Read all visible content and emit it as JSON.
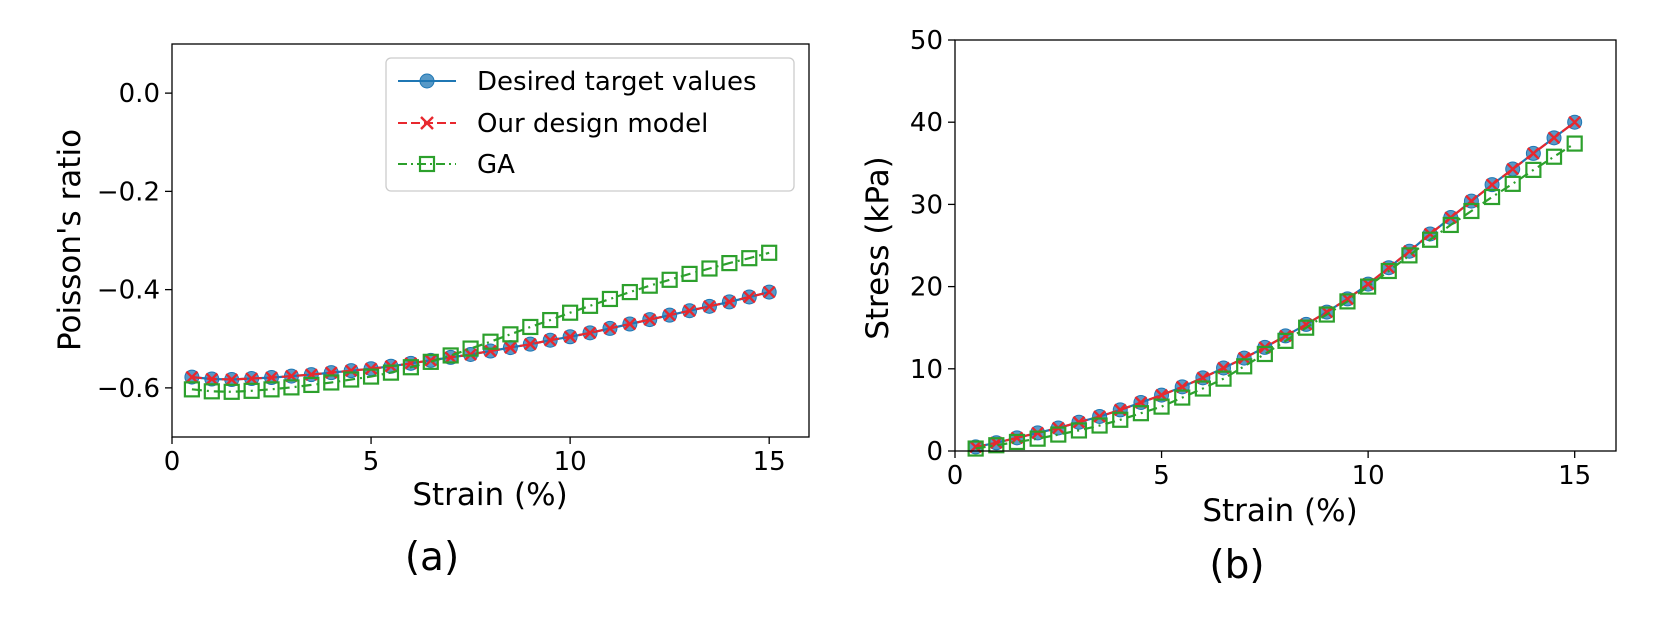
{
  "chart_data": [
    {
      "type": "line",
      "caption": "(a)",
      "xlabel": "Strain (%)",
      "ylabel": "Poisson's ratio",
      "xlim": [
        0,
        16
      ],
      "ylim": [
        -0.7,
        0.1
      ],
      "xticks": [
        0,
        5,
        10,
        15
      ],
      "xtick_labels": [
        "0",
        "5",
        "10",
        "15"
      ],
      "yticks": [
        0.0,
        -0.2,
        -0.4,
        -0.6
      ],
      "ytick_labels": [
        "0.0",
        "−0.2",
        "−0.4",
        "−0.6"
      ],
      "legend_position": "top-right",
      "x": [
        0.5,
        1,
        1.5,
        2,
        2.5,
        3,
        3.5,
        4,
        4.5,
        5,
        5.5,
        6,
        6.5,
        7,
        7.5,
        8,
        8.5,
        9,
        9.5,
        10,
        10.5,
        11,
        11.5,
        12,
        12.5,
        13,
        13.5,
        14,
        14.5,
        15
      ],
      "series": [
        {
          "name": "Desired target values",
          "color": "#1f77b4",
          "marker": "circle",
          "linestyle": "solid",
          "values": [
            -0.578,
            -0.582,
            -0.583,
            -0.581,
            -0.579,
            -0.576,
            -0.573,
            -0.569,
            -0.565,
            -0.561,
            -0.556,
            -0.55,
            -0.544,
            -0.538,
            -0.532,
            -0.525,
            -0.518,
            -0.511,
            -0.503,
            -0.496,
            -0.488,
            -0.479,
            -0.47,
            -0.461,
            -0.452,
            -0.443,
            -0.434,
            -0.425,
            -0.415,
            -0.405
          ]
        },
        {
          "name": "Our design model",
          "color": "#e8282e",
          "marker": "x",
          "linestyle": "dashed",
          "values": [
            -0.578,
            -0.582,
            -0.583,
            -0.581,
            -0.579,
            -0.576,
            -0.573,
            -0.569,
            -0.565,
            -0.561,
            -0.556,
            -0.55,
            -0.544,
            -0.538,
            -0.532,
            -0.525,
            -0.518,
            -0.511,
            -0.503,
            -0.496,
            -0.488,
            -0.479,
            -0.47,
            -0.461,
            -0.452,
            -0.443,
            -0.434,
            -0.425,
            -0.415,
            -0.405
          ]
        },
        {
          "name": "GA",
          "color": "#2ca02c",
          "marker": "square",
          "linestyle": "dashdot",
          "values": [
            -0.603,
            -0.607,
            -0.608,
            -0.606,
            -0.603,
            -0.599,
            -0.594,
            -0.589,
            -0.583,
            -0.577,
            -0.569,
            -0.558,
            -0.547,
            -0.534,
            -0.52,
            -0.506,
            -0.491,
            -0.476,
            -0.462,
            -0.447,
            -0.433,
            -0.419,
            -0.405,
            -0.392,
            -0.38,
            -0.368,
            -0.357,
            -0.346,
            -0.336,
            -0.325
          ]
        }
      ]
    },
    {
      "type": "line",
      "caption": "(b)",
      "xlabel": "Strain (%)",
      "ylabel": "Stress (kPa)",
      "xlim": [
        0,
        16
      ],
      "ylim": [
        0,
        50
      ],
      "xticks": [
        0,
        5,
        10,
        15
      ],
      "xtick_labels": [
        "0",
        "5",
        "10",
        "15"
      ],
      "yticks": [
        0,
        10,
        20,
        30,
        40,
        50
      ],
      "ytick_labels": [
        "0",
        "10",
        "20",
        "30",
        "40",
        "50"
      ],
      "x": [
        0.5,
        1,
        1.5,
        2,
        2.5,
        3,
        3.5,
        4,
        4.5,
        5,
        5.5,
        6,
        6.5,
        7,
        7.5,
        8,
        8.5,
        9,
        9.5,
        10,
        10.5,
        11,
        11.5,
        12,
        12.5,
        13,
        13.5,
        14,
        14.5,
        15
      ],
      "series": [
        {
          "name": "Desired target values",
          "color": "#1f77b4",
          "marker": "circle",
          "linestyle": "solid",
          "values": [
            0.5,
            1.0,
            1.6,
            2.2,
            2.8,
            3.5,
            4.2,
            5.0,
            5.9,
            6.8,
            7.8,
            8.9,
            10.1,
            11.3,
            12.6,
            14.0,
            15.4,
            16.9,
            18.5,
            20.3,
            22.3,
            24.3,
            26.4,
            28.4,
            30.4,
            32.4,
            34.3,
            36.2,
            38.1,
            40.0
          ]
        },
        {
          "name": "Our design model",
          "color": "#e8282e",
          "marker": "x",
          "linestyle": "dashed",
          "values": [
            0.5,
            1.0,
            1.6,
            2.2,
            2.8,
            3.5,
            4.2,
            5.0,
            5.9,
            6.8,
            7.8,
            8.9,
            10.1,
            11.3,
            12.6,
            14.0,
            15.4,
            16.9,
            18.5,
            20.3,
            22.3,
            24.3,
            26.4,
            28.4,
            30.4,
            32.4,
            34.3,
            36.2,
            38.1,
            40.0
          ]
        },
        {
          "name": "GA",
          "color": "#2ca02c",
          "marker": "square",
          "linestyle": "dashdot",
          "values": [
            0.3,
            0.7,
            1.1,
            1.5,
            2.0,
            2.5,
            3.1,
            3.8,
            4.6,
            5.4,
            6.5,
            7.6,
            8.8,
            10.3,
            11.8,
            13.4,
            15.0,
            16.6,
            18.2,
            20.0,
            21.9,
            23.8,
            25.7,
            27.5,
            29.2,
            30.9,
            32.5,
            34.2,
            35.8,
            37.4
          ]
        }
      ]
    }
  ]
}
